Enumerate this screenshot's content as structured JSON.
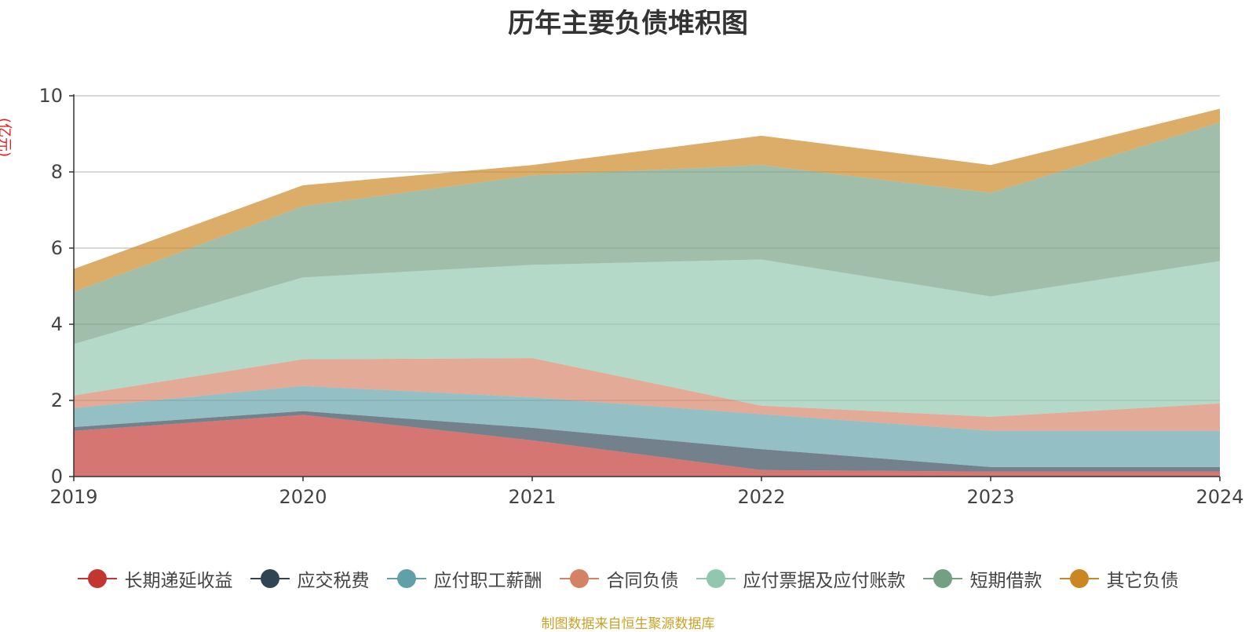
{
  "chart_data": {
    "type": "area",
    "stacked": true,
    "title": "历年主要负债堆积图",
    "ylabel": "(亿元)",
    "source": "制图数据来自恒生聚源数据库",
    "x": [
      "2019",
      "2020",
      "2021",
      "2022",
      "2023",
      "2024"
    ],
    "ylim": [
      0,
      10
    ],
    "yticks": [
      0,
      2,
      4,
      6,
      8,
      10
    ],
    "series": [
      {
        "name": "长期递延收益",
        "color": "#c23531",
        "values": [
          1.2,
          1.62,
          0.95,
          0.17,
          0.13,
          0.13
        ]
      },
      {
        "name": "应交税费",
        "color": "#2f4554",
        "values": [
          0.1,
          0.1,
          0.33,
          0.55,
          0.12,
          0.12
        ]
      },
      {
        "name": "应付职工薪酬",
        "color": "#61a0a8",
        "values": [
          0.5,
          0.66,
          0.8,
          0.92,
          0.95,
          0.95
        ]
      },
      {
        "name": "合同负债",
        "color": "#d48265",
        "values": [
          0.33,
          0.7,
          1.03,
          0.22,
          0.37,
          0.72
        ]
      },
      {
        "name": "应付票据及应付账款",
        "color": "#91c7ae",
        "values": [
          1.35,
          2.15,
          2.45,
          3.84,
          3.16,
          3.74
        ]
      },
      {
        "name": "短期借款",
        "color": "#749f83",
        "values": [
          1.37,
          1.87,
          2.35,
          2.48,
          2.72,
          3.64
        ]
      },
      {
        "name": "其它负债",
        "color": "#ca8622",
        "values": [
          0.6,
          0.55,
          0.27,
          0.77,
          0.73,
          0.36
        ]
      }
    ]
  }
}
